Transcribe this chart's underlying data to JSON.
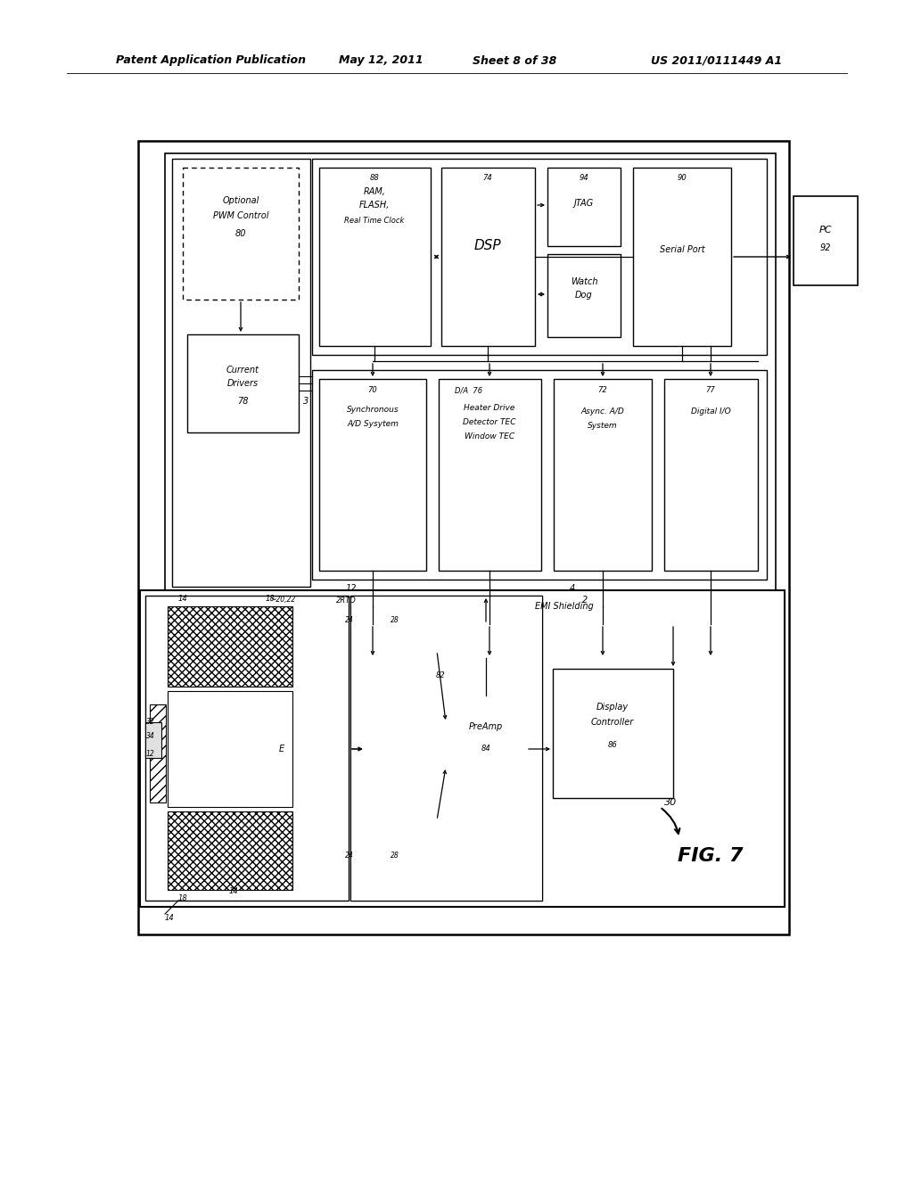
{
  "title_line1": "Patent Application Publication",
  "title_date": "May 12, 2011",
  "title_sheet": "Sheet 8 of 38",
  "title_patent": "US 2011/0111449 A1",
  "fig_label": "FIG. 7",
  "bg_color": "#ffffff",
  "line_color": "#000000"
}
